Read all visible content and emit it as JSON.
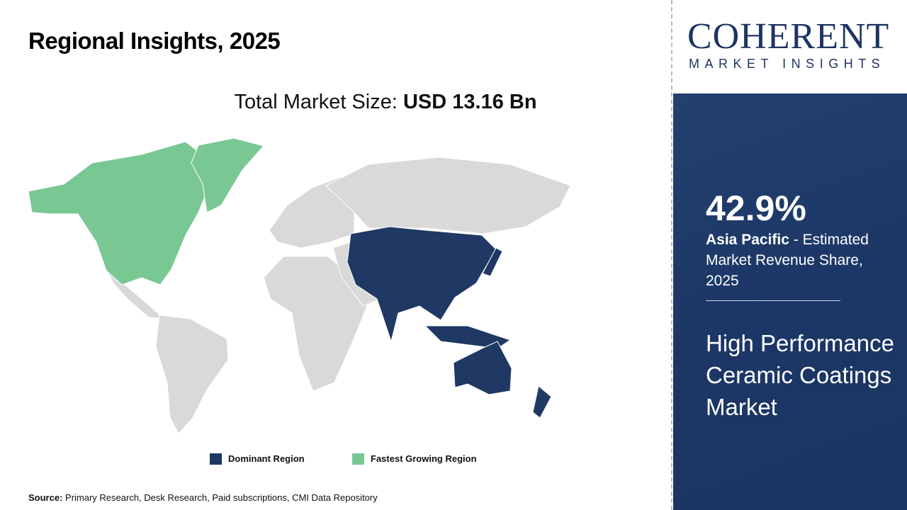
{
  "header": {
    "title": "Regional Insights, 2025"
  },
  "total": {
    "label": "Total Market Size:",
    "value": "USD 13.16 Bn"
  },
  "legend": [
    {
      "label": "Dominant Region",
      "color": "#1f3864"
    },
    {
      "label": "Fastest Growing Region",
      "color": "#79c894"
    }
  ],
  "source": {
    "label": "Source:",
    "text": "Primary Research, Desk Research, Paid subscriptions, CMI Data Repository"
  },
  "logo": {
    "line1": "COHERENT",
    "line2": "MARKET INSIGHTS"
  },
  "panel": {
    "share": "42.9%",
    "region": "Asia Pacific",
    "desc": " - Estimated Market Revenue Share, 2025",
    "market": "High Performance Ceramic Coatings Market"
  },
  "map": {
    "dominant_region": "Asia Pacific",
    "fastest_growing_region": "North America",
    "colors": {
      "dominant": "#1f3864",
      "fastest": "#79c894",
      "other": "#d9d9d9"
    }
  }
}
